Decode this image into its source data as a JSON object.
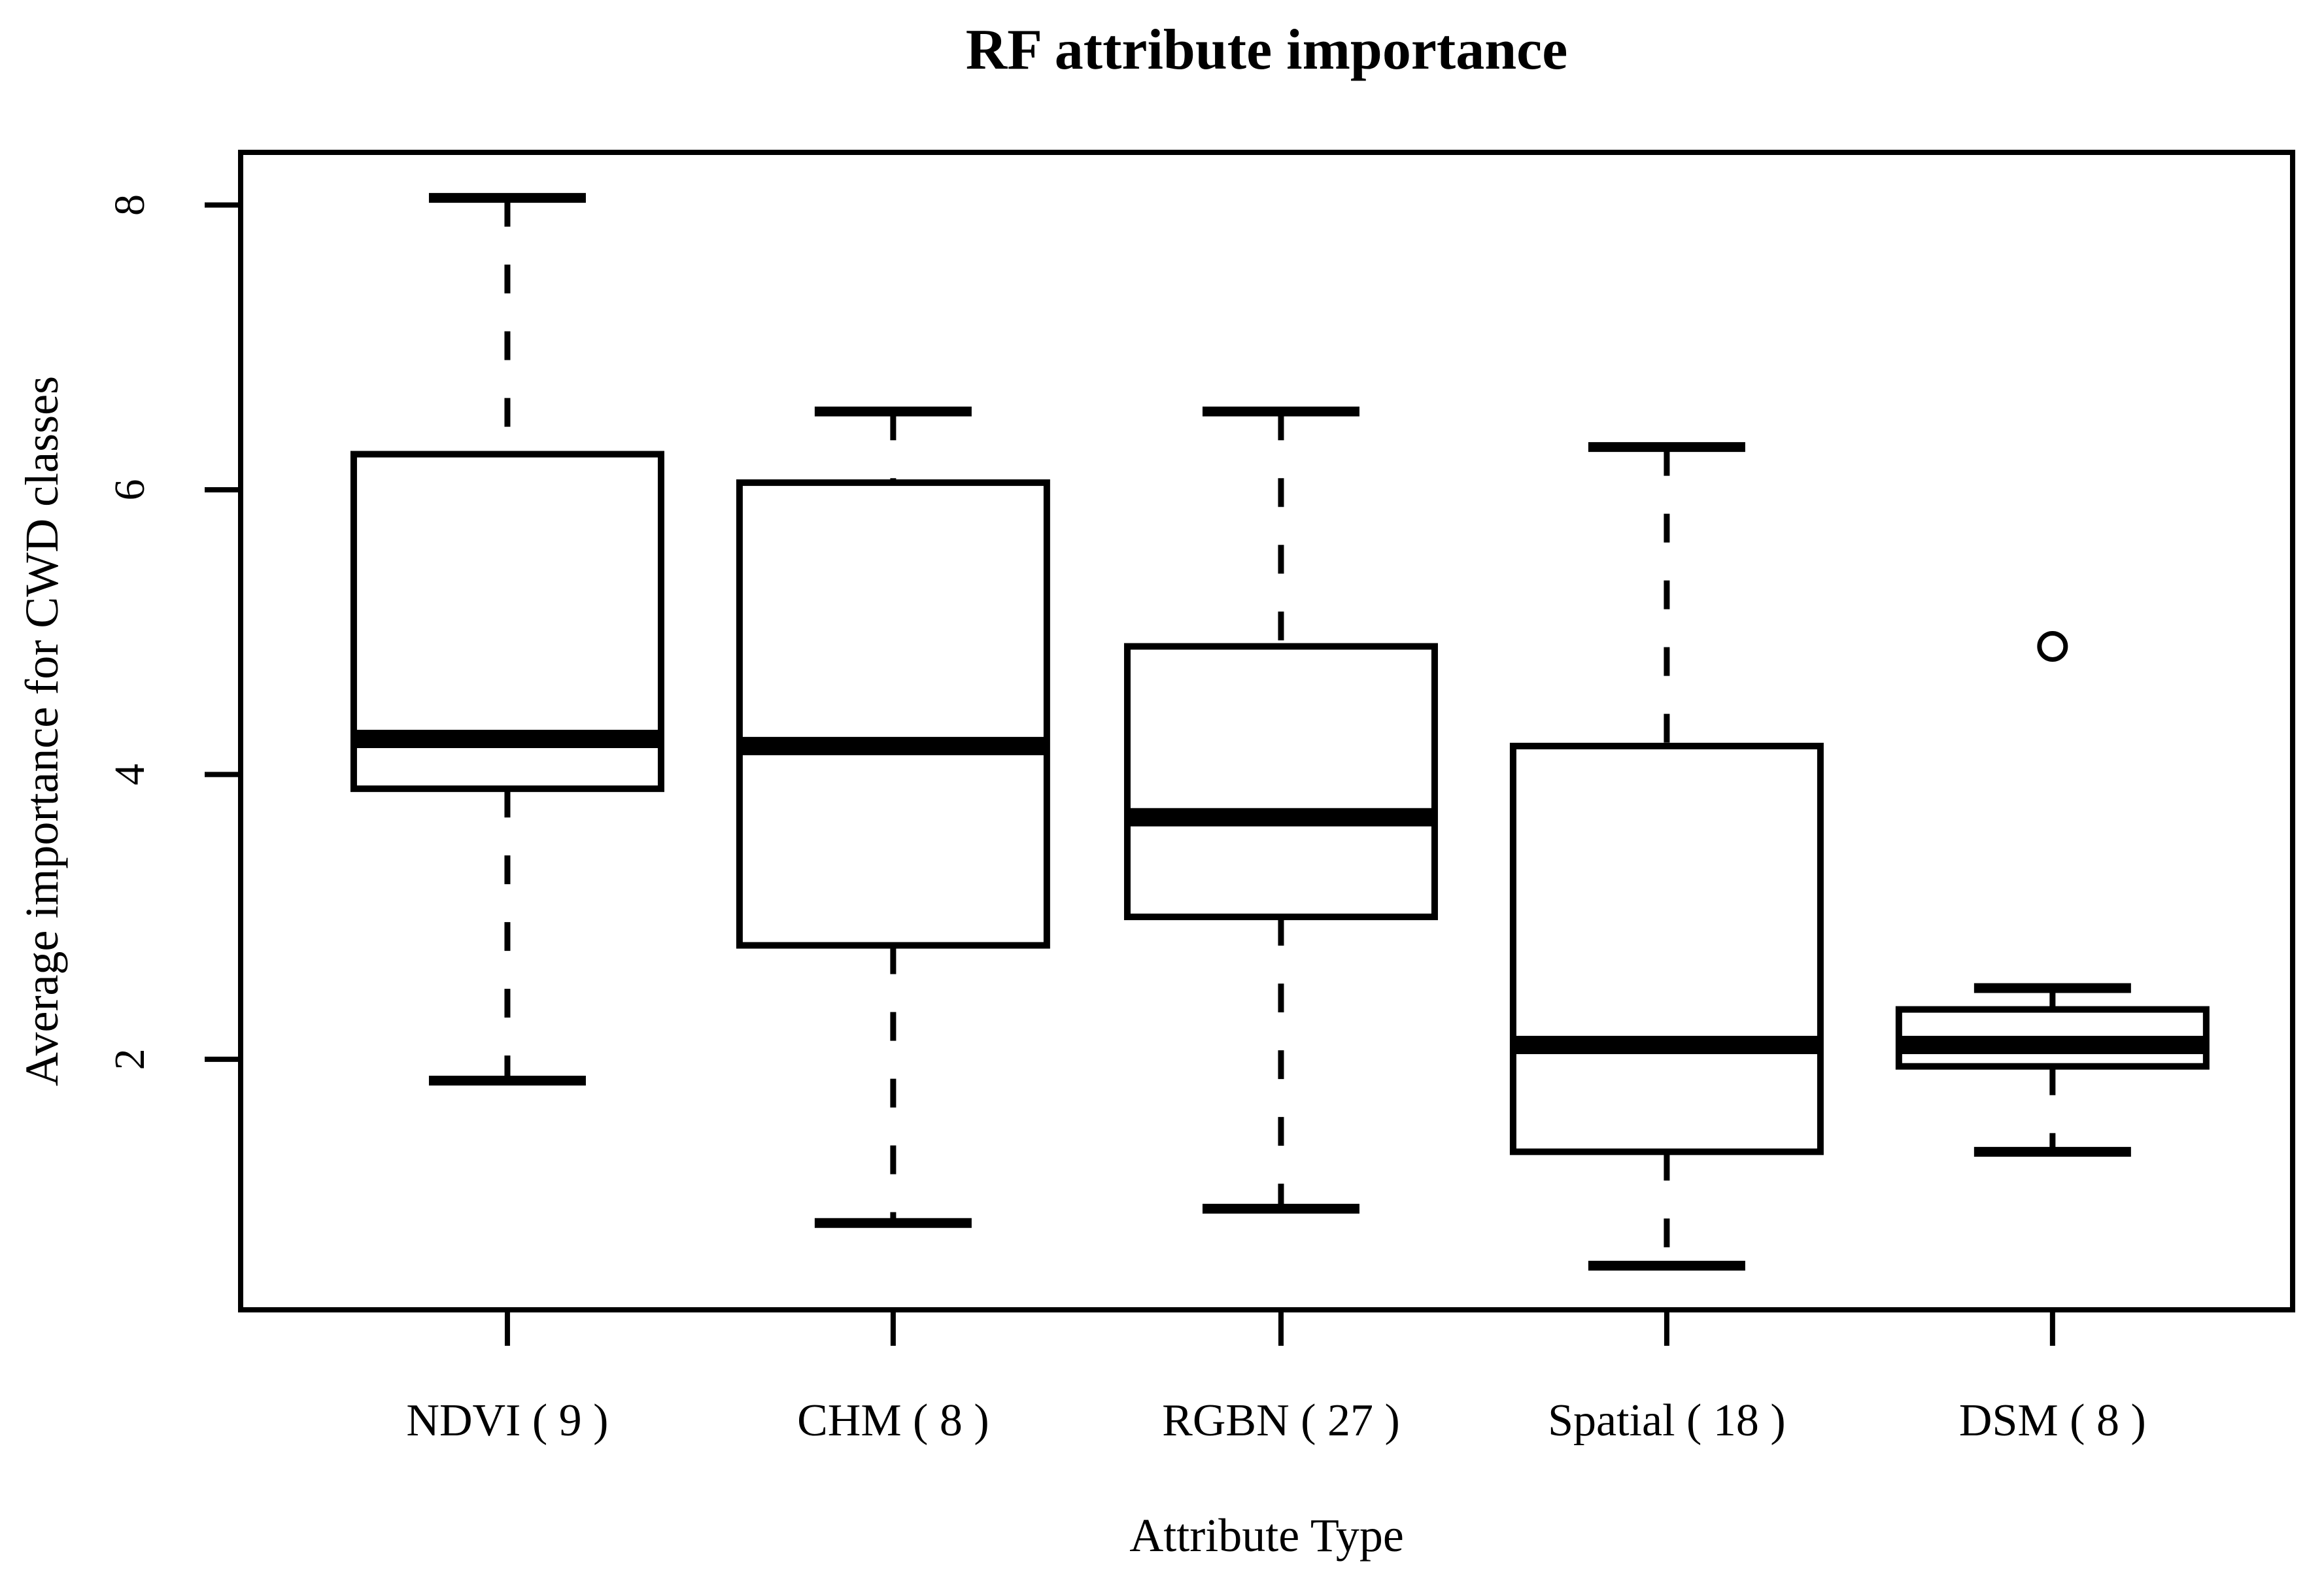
{
  "chart_data": {
    "type": "boxplot",
    "title": "RF attribute importance",
    "xlabel": "Attribute Type",
    "ylabel": "Average importance for CWD classes",
    "categories": [
      "NDVI ( 9 )",
      "CHM ( 8 )",
      "RGBN ( 27 )",
      "Spatial ( 18 )",
      "DSM ( 8 )"
    ],
    "y_ticks": [
      2,
      4,
      6,
      8
    ],
    "ylim": [
      0.24,
      8.37
    ],
    "grid": "off",
    "legend": "none",
    "series": [
      {
        "name": "NDVI ( 9 )",
        "whisker_low": 1.85,
        "q1": 3.9,
        "median": 4.25,
        "q3": 6.25,
        "whisker_high": 8.05,
        "outliers": []
      },
      {
        "name": "CHM ( 8 )",
        "whisker_low": 0.85,
        "q1": 2.8,
        "median": 4.2,
        "q3": 6.05,
        "whisker_high": 6.55,
        "outliers": []
      },
      {
        "name": "RGBN ( 27 )",
        "whisker_low": 0.95,
        "q1": 3.0,
        "median": 3.7,
        "q3": 4.9,
        "whisker_high": 6.55,
        "outliers": []
      },
      {
        "name": "Spatial ( 18 )",
        "whisker_low": 0.55,
        "q1": 1.35,
        "median": 2.1,
        "q3": 4.2,
        "whisker_high": 6.3,
        "outliers": []
      },
      {
        "name": "DSM ( 8 )",
        "whisker_low": 1.35,
        "q1": 1.95,
        "median": 2.1,
        "q3": 2.35,
        "whisker_high": 2.5,
        "outliers": [
          4.9
        ]
      }
    ],
    "styles": {
      "line_color": "#000000",
      "background": "#ffffff",
      "box_fill": "#ffffff"
    }
  }
}
